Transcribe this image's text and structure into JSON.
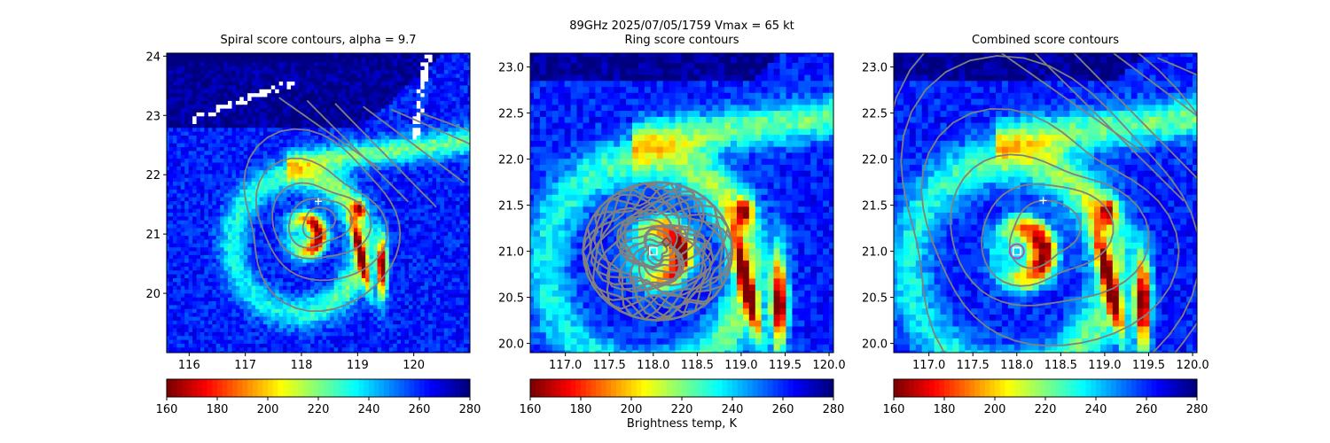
{
  "figure": {
    "suptitle_line1": "89GHz  2025/07/05/1759    Vmax = 65 kt",
    "colorbar_label": "Brightness temp, K"
  },
  "colormap": {
    "name": "jet_r",
    "colors": [
      "#7f0000",
      "#ff0000",
      "#ff7f00",
      "#ffff00",
      "#7fff7f",
      "#00ffff",
      "#007fff",
      "#0000ff",
      "#00007f"
    ],
    "contour_color": "#808080",
    "mask_color": "#ffffff"
  },
  "chart_data": [
    {
      "type": "heatmap",
      "title": "Spiral score contours, alpha =  9.7",
      "xlim": [
        115.6,
        121.0
      ],
      "ylim": [
        19.0,
        24.05
      ],
      "xticks": [
        "116",
        "117",
        "118",
        "119",
        "120"
      ],
      "yticks": [
        "20",
        "21",
        "22",
        "23",
        "24"
      ],
      "colorbar": {
        "range": [
          160,
          280
        ],
        "ticks": [
          "160",
          "180",
          "200",
          "220",
          "240",
          "260",
          "280"
        ]
      },
      "center": [
        118.0,
        20.95
      ],
      "markers": [
        {
          "type": "plus",
          "x": 118.3,
          "y": 21.55
        }
      ],
      "contours": "spiral"
    },
    {
      "type": "heatmap",
      "title": "Ring score contours",
      "xlim": [
        116.6,
        120.05
      ],
      "ylim": [
        19.9,
        23.15
      ],
      "xticks": [
        "117.0",
        "117.5",
        "118.0",
        "118.5",
        "119.0",
        "119.5",
        "120.0"
      ],
      "yticks": [
        "20.0",
        "20.5",
        "21.0",
        "21.5",
        "22.0",
        "22.5",
        "23.0"
      ],
      "colorbar": {
        "range": [
          160,
          280
        ],
        "ticks": [
          "160",
          "180",
          "200",
          "220",
          "240",
          "260",
          "280"
        ]
      },
      "center": [
        118.0,
        20.95
      ],
      "markers": [
        {
          "type": "square",
          "x": 118.0,
          "y": 21.0
        },
        {
          "type": "diamond",
          "x": 118.15,
          "y": 21.1
        }
      ],
      "contours": "ring"
    },
    {
      "type": "heatmap",
      "title": "Combined score contours",
      "xlim": [
        116.6,
        120.05
      ],
      "ylim": [
        19.9,
        23.15
      ],
      "xticks": [
        "117.0",
        "117.5",
        "118.0",
        "118.5",
        "119.0",
        "119.5",
        "120.0"
      ],
      "yticks": [
        "20.0",
        "20.5",
        "21.0",
        "21.5",
        "22.0",
        "22.5",
        "23.0"
      ],
      "colorbar": {
        "range": [
          160,
          280
        ],
        "ticks": [
          "160",
          "180",
          "200",
          "220",
          "240",
          "260",
          "280"
        ]
      },
      "center": [
        118.0,
        20.95
      ],
      "markers": [
        {
          "type": "plus",
          "x": 118.3,
          "y": 21.55
        },
        {
          "type": "square",
          "x": 118.0,
          "y": 21.0
        },
        {
          "type": "circle",
          "x": 118.0,
          "y": 21.0
        }
      ],
      "contours": "combined"
    }
  ]
}
